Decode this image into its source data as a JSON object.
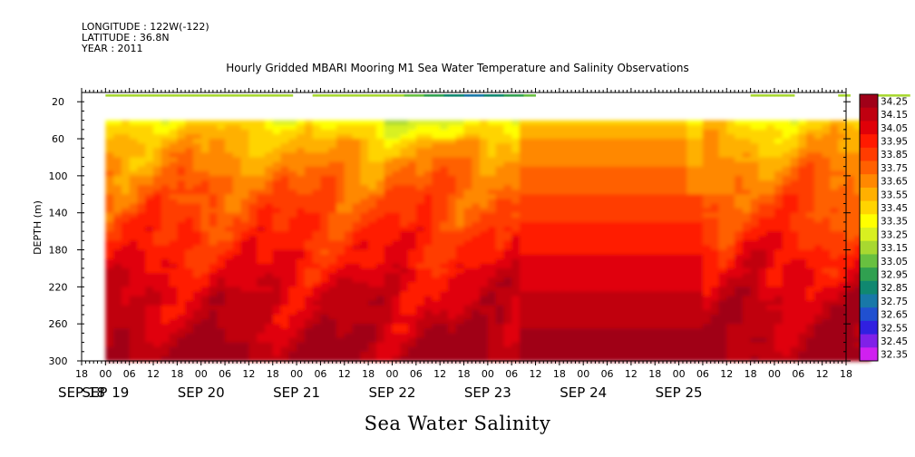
{
  "header": {
    "longitude": "LONGITUDE : 122W(-122)",
    "latitude": "LATITUDE : 36.8N",
    "year": "YEAR : 2011"
  },
  "chart_data": {
    "type": "heatmap",
    "title": "Hourly Gridded MBARI Mooring M1 Sea Water Temperature and Salinity Observations",
    "xlabel": "Sea Water Salinity",
    "ylabel": "DEPTH (m)",
    "x_range_hours": [
      0,
      192
    ],
    "x_start_label": "SEP 18 18:00",
    "ylim": [
      300,
      10
    ],
    "y_ticks": [
      20,
      60,
      100,
      140,
      180,
      220,
      260,
      300
    ],
    "x_hour_ticks": [
      "18",
      "00",
      "06",
      "12",
      "18",
      "00",
      "06",
      "12",
      "18",
      "00",
      "06",
      "12",
      "18",
      "00",
      "06",
      "12",
      "18",
      "00",
      "06",
      "12",
      "18",
      "00",
      "06",
      "12",
      "18",
      "00",
      "06",
      "12",
      "18",
      "00",
      "06",
      "12",
      "18"
    ],
    "x_date_labels": [
      {
        "label": "SEP 18",
        "hour": 0
      },
      {
        "label": "SEP 19",
        "hour": 6
      },
      {
        "label": "SEP 20",
        "hour": 30
      },
      {
        "label": "SEP 21",
        "hour": 54
      },
      {
        "label": "SEP 22",
        "hour": 78
      },
      {
        "label": "SEP 23",
        "hour": 102
      },
      {
        "label": "SEP 24",
        "hour": 126
      },
      {
        "label": "SEP 25",
        "hour": 150
      }
    ],
    "colorbar": {
      "levels": [
        "34.25",
        "34.15",
        "34.05",
        "33.95",
        "33.85",
        "33.75",
        "33.65",
        "33.55",
        "33.45",
        "33.35",
        "33.25",
        "33.15",
        "33.05",
        "32.95",
        "32.85",
        "32.75",
        "32.65",
        "32.55",
        "32.45",
        "32.35"
      ],
      "colors": [
        "#a00018",
        "#c00010",
        "#e00008",
        "#ff1a00",
        "#ff3c00",
        "#ff6000",
        "#ff8800",
        "#ffb000",
        "#ffd400",
        "#ffff00",
        "#d8f020",
        "#a8d830",
        "#68c040",
        "#30a050",
        "#108870",
        "#1878a8",
        "#2050d0",
        "#3020e0",
        "#8020e8",
        "#d020f0"
      ]
    },
    "surface_band": {
      "depth_m": 10,
      "segments_hours": [
        [
          6,
          53
        ],
        [
          58,
          114
        ],
        [
          168,
          179
        ],
        [
          190,
          193
        ],
        [
          198,
          208
        ]
      ],
      "low_salinity_center_hours": 98
    },
    "profile": {
      "x_hours": [
        6,
        12,
        18,
        24,
        30,
        36,
        42,
        48,
        54,
        60,
        66,
        72,
        78,
        84,
        90,
        96,
        102,
        108,
        114,
        120,
        126,
        132,
        138,
        144,
        150,
        156,
        162,
        168,
        174,
        180,
        186,
        192,
        198,
        204
      ],
      "depth_m": [
        40,
        50,
        60,
        70,
        80,
        90,
        100,
        110,
        120,
        130,
        140,
        150,
        160,
        170,
        180,
        190,
        200,
        210,
        220,
        230,
        240,
        250,
        260,
        270,
        280,
        290,
        300
      ],
      "note": "Salinity rises from ~33.4 near 40 m to ~34.2 near 300 m."
    }
  }
}
